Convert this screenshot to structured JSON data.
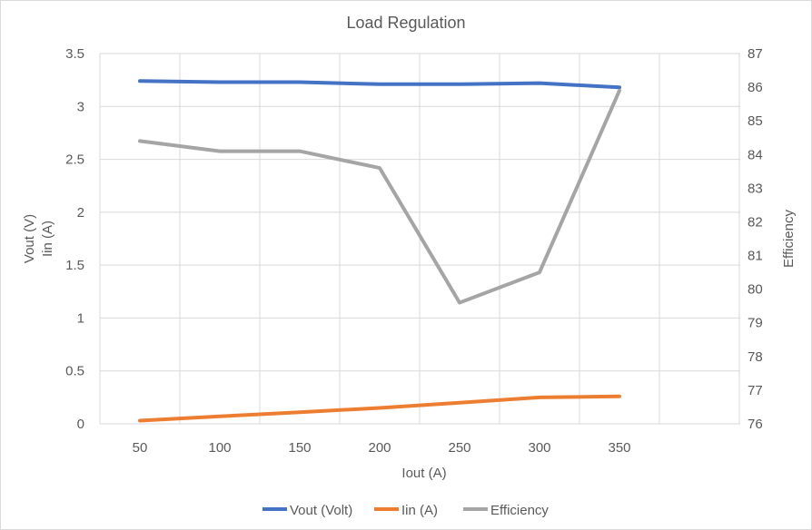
{
  "chart_data": {
    "type": "line",
    "title": "Load Regulation",
    "xlabel": "Iout (A)",
    "ylabel_left": [
      "Vout (V)",
      "Iin (A)"
    ],
    "ylabel_right": "Efficiency",
    "x": [
      50,
      100,
      150,
      200,
      250,
      300,
      350
    ],
    "x_ticks": [
      "50",
      "100",
      "150",
      "200",
      "250",
      "300",
      "350"
    ],
    "ylim_left": [
      0,
      3.5
    ],
    "yticks_left": [
      "0",
      "0.5",
      "1",
      "1.5",
      "2",
      "2.5",
      "3",
      "3.5"
    ],
    "ylim_right": [
      76,
      87
    ],
    "yticks_right": [
      "76",
      "77",
      "78",
      "79",
      "80",
      "81",
      "82",
      "83",
      "84",
      "85",
      "86",
      "87"
    ],
    "grid": true,
    "legend_position": "bottom",
    "series": [
      {
        "name": "Vout (Volt)",
        "axis": "left",
        "color": "#4472c4",
        "values": [
          3.24,
          3.23,
          3.23,
          3.21,
          3.21,
          3.22,
          3.18
        ]
      },
      {
        "name": "Iin (A)",
        "axis": "left",
        "color": "#ed7d31",
        "values": [
          0.03,
          0.07,
          0.11,
          0.15,
          0.2,
          0.25,
          0.26
        ]
      },
      {
        "name": "Efficiency",
        "axis": "right",
        "color": "#a5a5a5",
        "values": [
          84.4,
          84.1,
          84.1,
          83.6,
          79.6,
          80.5,
          85.9
        ]
      }
    ]
  }
}
